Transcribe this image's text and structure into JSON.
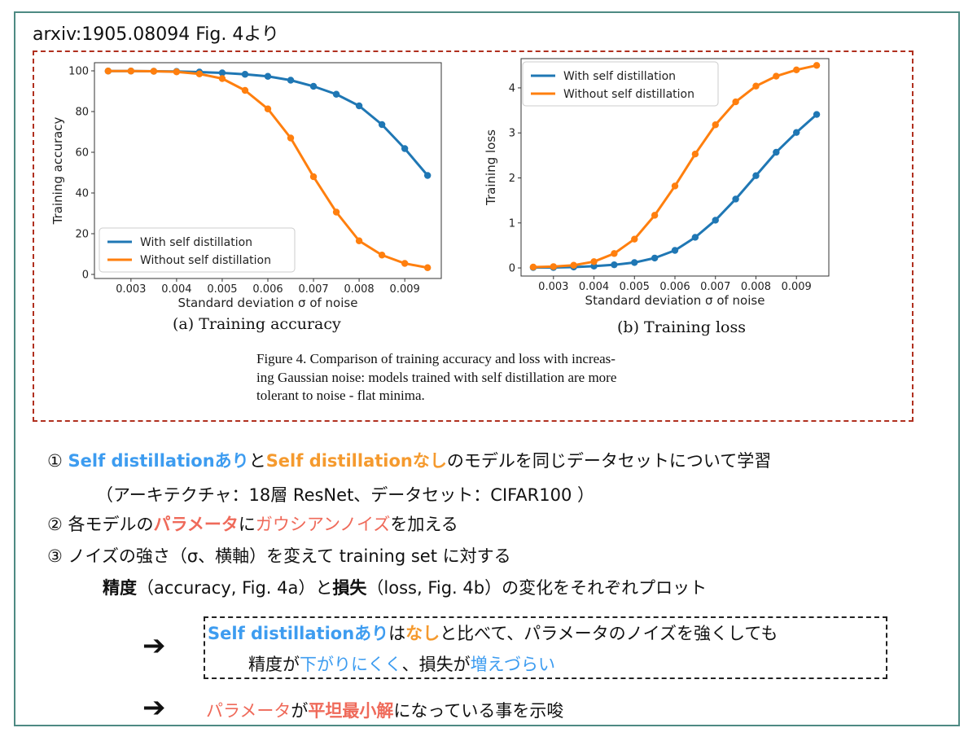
{
  "source_label": "arxiv:1905.08094 Fig. 4より",
  "figure": {
    "caption_a": "(a) Training accuracy",
    "caption_b": "(b) Training loss",
    "caption_line1": "Figure 4. Comparison of training accuracy and loss with increas-",
    "caption_line2": "ing Gaussian noise: models trained with self distillation are more",
    "caption_line3": "tolerant to noise - flat minima."
  },
  "chart_data": [
    {
      "type": "line",
      "title": "",
      "xlabel": "Standard deviation σ of noise",
      "ylabel": "Training accuracy",
      "xlim": [
        0.0022,
        0.0098
      ],
      "ylim": [
        -2,
        104
      ],
      "xticks": [
        "0.003",
        "0.004",
        "0.005",
        "0.006",
        "0.007",
        "0.008",
        "0.009"
      ],
      "yticks": [
        "0",
        "20",
        "40",
        "60",
        "80",
        "100"
      ],
      "legend_position": "lower-left",
      "grid": false,
      "x": [
        0.0025,
        0.003,
        0.0035,
        0.004,
        0.0045,
        0.005,
        0.0055,
        0.006,
        0.0065,
        0.007,
        0.0075,
        0.008,
        0.0085,
        0.009,
        0.0095
      ],
      "series": [
        {
          "name": "With self distillation",
          "color": "#1f77b4",
          "values": [
            99.9,
            99.9,
            99.8,
            99.7,
            99.4,
            99.0,
            98.3,
            97.3,
            95.4,
            92.4,
            88.5,
            82.8,
            73.6,
            61.8,
            48.6
          ]
        },
        {
          "name": "Without self distillation",
          "color": "#ff7f0e",
          "values": [
            99.9,
            99.9,
            99.8,
            99.5,
            98.5,
            96.2,
            90.4,
            81.3,
            67.0,
            48.0,
            30.6,
            16.5,
            9.5,
            5.4,
            3.3
          ]
        }
      ]
    },
    {
      "type": "line",
      "title": "",
      "xlabel": "Standard deviation σ of noise",
      "ylabel": "Training loss",
      "xlim": [
        0.0022,
        0.0098
      ],
      "ylim": [
        -0.18,
        4.65
      ],
      "xticks": [
        "0.003",
        "0.004",
        "0.005",
        "0.006",
        "0.007",
        "0.008",
        "0.009"
      ],
      "yticks": [
        "0",
        "1",
        "2",
        "3",
        "4"
      ],
      "legend_position": "top-left",
      "grid": false,
      "x": [
        0.0025,
        0.003,
        0.0035,
        0.004,
        0.0045,
        0.005,
        0.0055,
        0.006,
        0.0065,
        0.007,
        0.0075,
        0.008,
        0.0085,
        0.009,
        0.0095
      ],
      "series": [
        {
          "name": "With self distillation",
          "color": "#1f77b4",
          "values": [
            0.01,
            0.01,
            0.02,
            0.04,
            0.07,
            0.12,
            0.22,
            0.39,
            0.68,
            1.06,
            1.53,
            2.05,
            2.57,
            3.01,
            3.41
          ]
        },
        {
          "name": "Without self distillation",
          "color": "#ff7f0e",
          "values": [
            0.02,
            0.03,
            0.06,
            0.14,
            0.32,
            0.64,
            1.17,
            1.82,
            2.53,
            3.18,
            3.69,
            4.04,
            4.26,
            4.4,
            4.5
          ]
        }
      ]
    }
  ],
  "body": {
    "l1_mark": "①",
    "l1_a": "Self distillationあり",
    "l1_b": "と",
    "l1_c": "Self distillationなし",
    "l1_d": "のモデルを同じデータセットについて学習",
    "l2": "（アーキテクチャ：18層 ResNet、データセット：CIFAR100 ）",
    "l3_a": "② 各モデルの",
    "l3_b": "パラメータ",
    "l3_c": "に",
    "l3_d": "ガウシアンノイズ",
    "l3_e": "を加える",
    "l4": "③ ノイズの強さ（σ、横軸）を変えて training set に対する",
    "l5_a": "精度",
    "l5_b": "（accuracy, Fig. 4a）と",
    "l5_c": "損失",
    "l5_d": "（loss, Fig. 4b）の変化をそれぞれプロット"
  },
  "conclusion": {
    "arrow": "➔",
    "c1_a": "Self distillationあり",
    "c1_b": "は",
    "c1_c": "なし",
    "c1_d": "と比べて、パラメータのノイズを強くしても",
    "c2_a": "精度が",
    "c2_b": "下がりにくく",
    "c2_c": "、損失が",
    "c2_d": "増えづらい",
    "c3_a": "パラメータ",
    "c3_b": "が",
    "c3_c": "平坦最小解",
    "c3_d": "になっている事を示唆"
  }
}
